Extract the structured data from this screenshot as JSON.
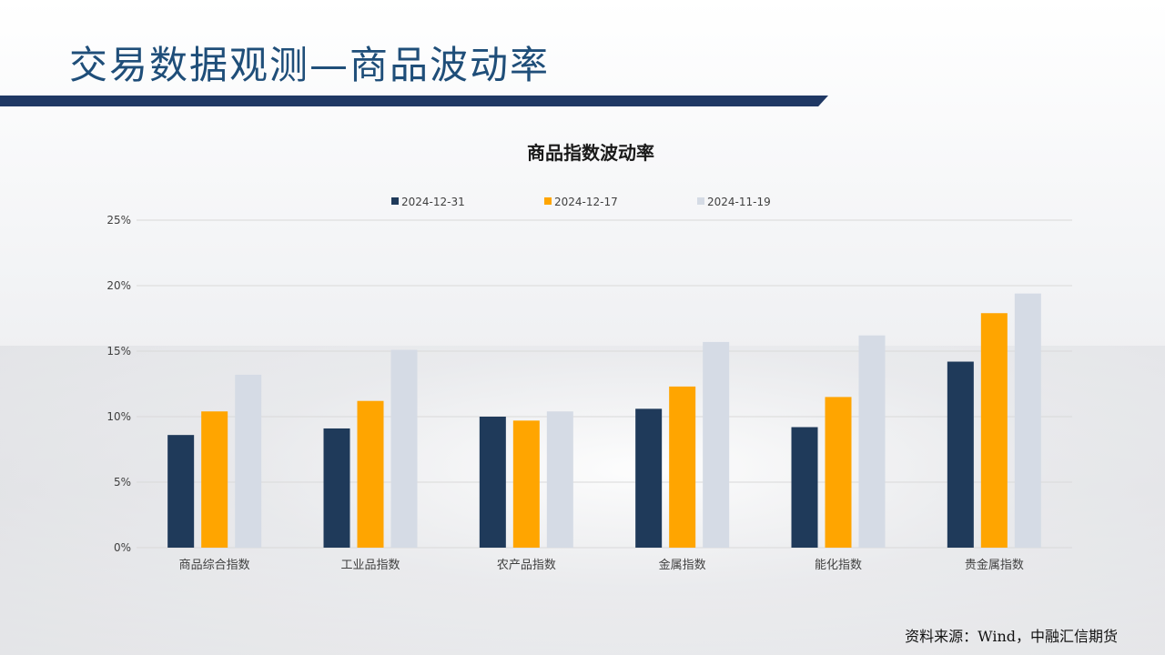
{
  "slide": {
    "title": "交易数据观测—商品波动率",
    "source": "资料来源：Wind，中融汇信期货"
  },
  "colors": {
    "title": "#1f4e79",
    "title_bar": "#1f3864",
    "series": [
      "#1f3a5a",
      "#ffa500",
      "#d5dbe5"
    ],
    "grid": "#d9d9d9"
  },
  "chart_data": {
    "type": "bar",
    "title": "商品指数波动率",
    "categories": [
      "商品综合指数",
      "工业品指数",
      "农产品指数",
      "金属指数",
      "能化指数",
      "贵金属指数"
    ],
    "series": [
      {
        "name": "2024-12-31",
        "values": [
          8.6,
          9.1,
          10.0,
          10.6,
          9.2,
          14.2
        ]
      },
      {
        "name": "2024-12-17",
        "values": [
          10.4,
          11.2,
          9.7,
          12.3,
          11.5,
          17.9
        ]
      },
      {
        "name": "2024-11-19",
        "values": [
          13.2,
          15.1,
          10.4,
          15.7,
          16.2,
          19.4
        ]
      }
    ],
    "y_ticks": [
      "0%",
      "5%",
      "10%",
      "15%",
      "20%",
      "25%"
    ],
    "ylim": [
      0,
      25
    ],
    "grid": true,
    "legend_position": "top"
  }
}
